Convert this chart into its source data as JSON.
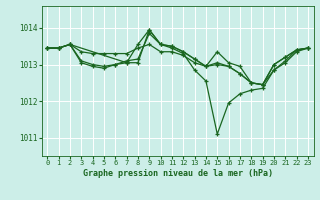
{
  "background_color": "#cceee8",
  "grid_color": "#ffffff",
  "line_color": "#1a6620",
  "title": "Graphe pression niveau de la mer (hPa)",
  "xlim": [
    -0.5,
    23.5
  ],
  "ylim": [
    1010.5,
    1014.6
  ],
  "yticks": [
    1011,
    1012,
    1013,
    1014
  ],
  "xticks": [
    0,
    1,
    2,
    3,
    4,
    5,
    6,
    7,
    8,
    9,
    10,
    11,
    12,
    13,
    14,
    15,
    16,
    17,
    18,
    19,
    20,
    21,
    22,
    23
  ],
  "line1_x": [
    0,
    1,
    2,
    3,
    4,
    5,
    6,
    7,
    8,
    9,
    10,
    11,
    12,
    13,
    14,
    15,
    16,
    17,
    18,
    19,
    20,
    21,
    22,
    23
  ],
  "line1_y": [
    1013.45,
    1013.45,
    1013.55,
    1013.35,
    1013.3,
    1013.3,
    1013.3,
    1013.3,
    1013.45,
    1013.55,
    1013.35,
    1013.35,
    1013.25,
    1013.05,
    1012.95,
    1013.0,
    1012.95,
    1012.75,
    1012.5,
    1012.45,
    1013.0,
    1013.2,
    1013.4,
    1013.45
  ],
  "line2_x": [
    0,
    1,
    2,
    3,
    4,
    5,
    6,
    7,
    8,
    9,
    10,
    11,
    12,
    13,
    14,
    15,
    16,
    17,
    18,
    19,
    20,
    21,
    22,
    23
  ],
  "line2_y": [
    1013.45,
    1013.45,
    1013.55,
    1013.1,
    1013.0,
    1012.95,
    1013.0,
    1013.1,
    1013.15,
    1013.85,
    1013.55,
    1013.5,
    1013.35,
    1013.15,
    1012.95,
    1013.05,
    1012.95,
    1012.75,
    1012.5,
    1012.45,
    1013.0,
    1013.2,
    1013.4,
    1013.45
  ],
  "line3_x": [
    0,
    1,
    2,
    3,
    4,
    5,
    6,
    7,
    8,
    9,
    10,
    11,
    12,
    13,
    14,
    15,
    16,
    17,
    18,
    19,
    20,
    21,
    22,
    23
  ],
  "line3_y": [
    1013.45,
    1013.45,
    1013.55,
    1013.05,
    1012.95,
    1012.9,
    1013.0,
    1013.05,
    1013.05,
    1013.95,
    1013.55,
    1013.5,
    1013.35,
    1013.15,
    1012.95,
    1013.35,
    1013.05,
    1012.95,
    1012.5,
    1012.45,
    1012.85,
    1013.05,
    1013.35,
    1013.45
  ],
  "line4_x": [
    0,
    1,
    2,
    7,
    8,
    9,
    10,
    11,
    12,
    13,
    14,
    15,
    16,
    17,
    18,
    19,
    20,
    21,
    22,
    23
  ],
  "line4_y": [
    1013.45,
    1013.45,
    1013.55,
    1013.05,
    1013.55,
    1013.95,
    1013.55,
    1013.45,
    1013.3,
    1012.85,
    1012.55,
    1011.1,
    1011.95,
    1012.2,
    1012.3,
    1012.35,
    1012.85,
    1013.1,
    1013.4,
    1013.45
  ]
}
